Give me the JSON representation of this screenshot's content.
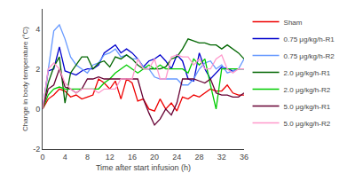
{
  "chart_data": {
    "type": "line",
    "xlabel": "Time after start infusion (h)",
    "ylabel": "Change in body temperature (°C)",
    "x": [
      0,
      1,
      2,
      3,
      4,
      5,
      6,
      7,
      8,
      9,
      10,
      11,
      12,
      13,
      14,
      15,
      16,
      17,
      18,
      19,
      20,
      21,
      22,
      23,
      24,
      25,
      26,
      27,
      28,
      29,
      30,
      31,
      32,
      33,
      34,
      35,
      36
    ],
    "series": [
      {
        "name": "Sham",
        "color": "#ee0000",
        "values": [
          0.0,
          0.5,
          0.7,
          1.0,
          0.9,
          0.6,
          0.7,
          0.5,
          0.6,
          0.7,
          1.5,
          1.3,
          1.0,
          1.4,
          0.5,
          1.5,
          1.3,
          0.4,
          0.5,
          0.0,
          -0.1,
          0.5,
          0.0,
          0.3,
          -0.1,
          0.6,
          0.5,
          0.7,
          0.6,
          0.8,
          1.0,
          0.9,
          0.9,
          1.2,
          0.8,
          0.7,
          0.7
        ]
      },
      {
        "name": "0.75 μg/kg/h-R1",
        "color": "#0000cc",
        "values": [
          0.0,
          1.9,
          2.0,
          3.1,
          1.9,
          1.8,
          1.7,
          1.9,
          2.0,
          2.0,
          2.2,
          2.8,
          3.0,
          3.2,
          2.8,
          3.0,
          2.8,
          2.5,
          2.1,
          2.4,
          2.5,
          2.7,
          2.4,
          2.0,
          2.7,
          2.4,
          1.5,
          1.4,
          2.8,
          2.0,
          1.5,
          1.8,
          2.1,
          2.0,
          1.9,
          2.0,
          2.0
        ]
      },
      {
        "name": "0.75 μg/kg/h-R2",
        "color": "#6699ff",
        "values": [
          0.0,
          2.0,
          3.9,
          4.2,
          3.5,
          2.6,
          2.2,
          2.0,
          1.8,
          2.2,
          2.3,
          2.7,
          2.8,
          3.0,
          2.6,
          2.7,
          2.5,
          2.5,
          2.1,
          2.0,
          1.6,
          1.5,
          1.5,
          1.5,
          1.5,
          1.2,
          1.2,
          1.5,
          2.0,
          2.3,
          2.4,
          2.0,
          2.2,
          1.8,
          1.9,
          2.0,
          2.5
        ]
      },
      {
        "name": "2.0 μg/kg/h-R1",
        "color": "#006600",
        "values": [
          0.0,
          1.3,
          2.1,
          2.6,
          0.3,
          1.8,
          2.2,
          2.6,
          2.6,
          2.0,
          2.3,
          2.4,
          2.1,
          2.6,
          2.5,
          2.7,
          2.5,
          2.2,
          2.0,
          2.0,
          2.0,
          2.0,
          2.1,
          2.5,
          2.6,
          3.0,
          3.5,
          3.4,
          3.3,
          3.3,
          3.2,
          3.2,
          3.0,
          3.2,
          3.0,
          2.8,
          2.5
        ]
      },
      {
        "name": "2.0 μg/kg/h-R2",
        "color": "#00cc00",
        "values": [
          0.0,
          0.7,
          1.0,
          1.1,
          1.0,
          1.0,
          1.0,
          1.0,
          1.0,
          1.0,
          1.0,
          1.3,
          1.5,
          1.8,
          2.0,
          2.2,
          2.0,
          1.8,
          2.0,
          2.2,
          2.0,
          2.2,
          2.0,
          2.0,
          2.0,
          2.0,
          1.8,
          2.5,
          2.2,
          2.5,
          1.2,
          0.0,
          2.0,
          2.0,
          2.0,
          2.0,
          2.0
        ]
      },
      {
        "name": "5.0 μg/kg/h-R1",
        "color": "#660033",
        "values": [
          0.0,
          1.0,
          1.2,
          2.0,
          1.1,
          1.0,
          0.8,
          1.0,
          1.5,
          1.5,
          1.6,
          1.5,
          1.5,
          1.5,
          1.5,
          1.5,
          1.5,
          1.5,
          0.5,
          -0.2,
          -0.8,
          -0.5,
          0.0,
          -0.3,
          0.3,
          1.5,
          1.5,
          1.5,
          1.4,
          1.3,
          1.5,
          0.8,
          0.7,
          0.7,
          0.6,
          0.6,
          0.8
        ]
      },
      {
        "name": "5.0 μg/kg/h-R2",
        "color": "#ff99cc",
        "values": [
          0.0,
          2.0,
          2.3,
          2.0,
          1.3,
          1.0,
          0.8,
          1.0,
          1.0,
          1.0,
          0.8,
          1.0,
          1.0,
          1.0,
          1.5,
          1.5,
          1.5,
          2.5,
          2.0,
          2.0,
          2.5,
          1.5,
          1.5,
          2.6,
          2.7,
          2.6,
          2.6,
          2.2,
          2.5,
          2.0,
          2.0,
          2.5,
          2.7,
          2.0,
          1.8,
          2.0,
          2.0
        ]
      }
    ],
    "xlim": [
      0,
      36
    ],
    "ylim": [
      -2,
      5
    ],
    "xticks": [
      0,
      4,
      8,
      12,
      16,
      20,
      24,
      28,
      32,
      36
    ],
    "yticks": [
      -2,
      0,
      2,
      4
    ],
    "grid": false,
    "legend": "right"
  }
}
